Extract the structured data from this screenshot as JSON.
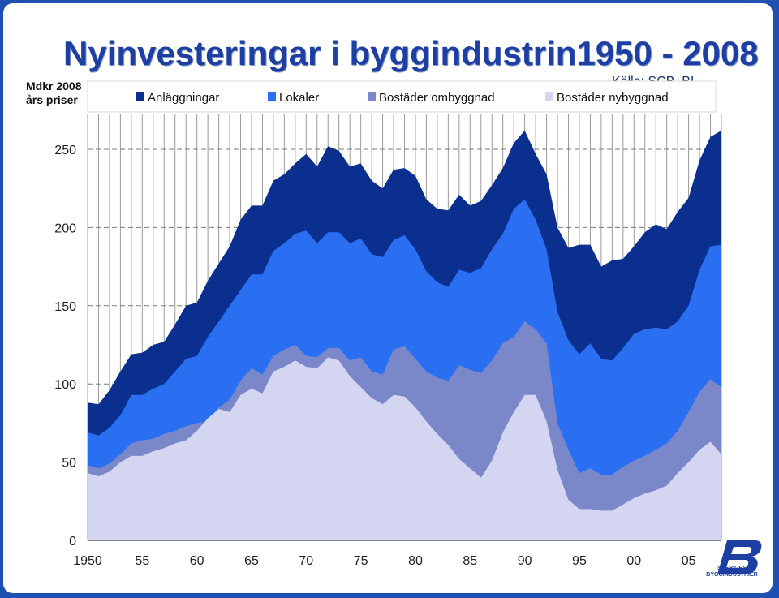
{
  "title": "Nyinvesteringar i byggindustrin1950 - 2008",
  "source": "Källa: SCB, BI",
  "unit_line1": "Mdkr 2008",
  "unit_line2": "års priser",
  "logo_text_1": "SVERIGES",
  "logo_text_2": "BYGGINDUSTRIER",
  "colors": {
    "background_frame": "#1f4fb0",
    "Anläggningar": "#0a2f8f",
    "Lokaler": "#2a6ff2",
    "Bostäder ombyggnad": "#7a88c9",
    "Bostäder nybyggnad": "#d3d5f1"
  },
  "chart_data": {
    "type": "area",
    "stacked": true,
    "x": [
      1950,
      1951,
      1952,
      1953,
      1954,
      1955,
      1956,
      1957,
      1958,
      1959,
      1960,
      1961,
      1962,
      1963,
      1964,
      1965,
      1966,
      1967,
      1968,
      1969,
      1970,
      1971,
      1972,
      1973,
      1974,
      1975,
      1976,
      1977,
      1978,
      1979,
      1980,
      1981,
      1982,
      1983,
      1984,
      1985,
      1986,
      1987,
      1988,
      1989,
      1990,
      1991,
      1992,
      1993,
      1994,
      1995,
      1996,
      1997,
      1998,
      1999,
      2000,
      2001,
      2002,
      2003,
      2004,
      2005,
      2006,
      2007,
      2008
    ],
    "xticks": [
      "1950",
      "55",
      "60",
      "65",
      "70",
      "75",
      "80",
      "85",
      "90",
      "95",
      "00",
      "05"
    ],
    "xtick_values": [
      1950,
      1955,
      1960,
      1965,
      1970,
      1975,
      1980,
      1985,
      1990,
      1995,
      2000,
      2005
    ],
    "yticks": [
      0,
      50,
      100,
      150,
      200,
      250
    ],
    "ylim": [
      0,
      260
    ],
    "grid": "vertical lines each year, dashed horizontal at y ticks",
    "legend_position": "top",
    "legend": [
      "Anläggningar",
      "Lokaler",
      "Bostäder ombyggnad",
      "Bostäder nybyggnad"
    ],
    "totals": {
      "Bostäder nybyggnad": [
        43,
        41,
        44,
        50,
        54,
        54,
        57,
        59,
        62,
        64,
        70,
        78,
        84,
        82,
        93,
        97,
        94,
        108,
        111,
        115,
        111,
        110,
        117,
        115,
        105,
        98,
        91,
        87,
        93,
        92,
        85,
        76,
        68,
        61,
        52,
        46,
        40,
        51,
        69,
        82,
        93,
        93,
        76,
        45,
        26,
        20,
        20,
        19,
        19,
        23,
        27,
        30,
        32,
        35,
        43,
        50,
        58,
        63,
        55
      ],
      "Bostäder ombyggnad": [
        48,
        46,
        49,
        55,
        62,
        64,
        65,
        68,
        70,
        73,
        75,
        76,
        85,
        90,
        102,
        110,
        106,
        118,
        122,
        125,
        118,
        117,
        123,
        123,
        115,
        117,
        108,
        106,
        122,
        124,
        116,
        108,
        104,
        102,
        112,
        109,
        107,
        115,
        126,
        130,
        140,
        135,
        126,
        75,
        58,
        43,
        46,
        42,
        42,
        47,
        51,
        54,
        58,
        62,
        70,
        82,
        95,
        103,
        98
      ],
      "Lokaler": [
        69,
        67,
        72,
        80,
        93,
        93,
        97,
        100,
        108,
        116,
        118,
        130,
        140,
        150,
        160,
        170,
        170,
        185,
        190,
        196,
        198,
        190,
        197,
        197,
        190,
        193,
        183,
        181,
        192,
        195,
        186,
        172,
        165,
        162,
        173,
        171,
        174,
        186,
        196,
        212,
        218,
        205,
        186,
        146,
        128,
        119,
        126,
        116,
        115,
        123,
        132,
        135,
        136,
        135,
        140,
        150,
        173,
        188,
        189
      ],
      "Anläggningar": [
        88,
        87,
        96,
        108,
        119,
        120,
        125,
        127,
        138,
        150,
        152,
        166,
        177,
        188,
        205,
        214,
        214,
        230,
        234,
        241,
        247,
        239,
        252,
        249,
        239,
        241,
        230,
        225,
        237,
        238,
        233,
        218,
        212,
        211,
        221,
        214,
        217,
        227,
        238,
        254,
        262,
        247,
        234,
        200,
        187,
        189,
        189,
        175,
        179,
        180,
        188,
        197,
        202,
        199,
        210,
        219,
        243,
        258,
        262
      ]
    }
  }
}
